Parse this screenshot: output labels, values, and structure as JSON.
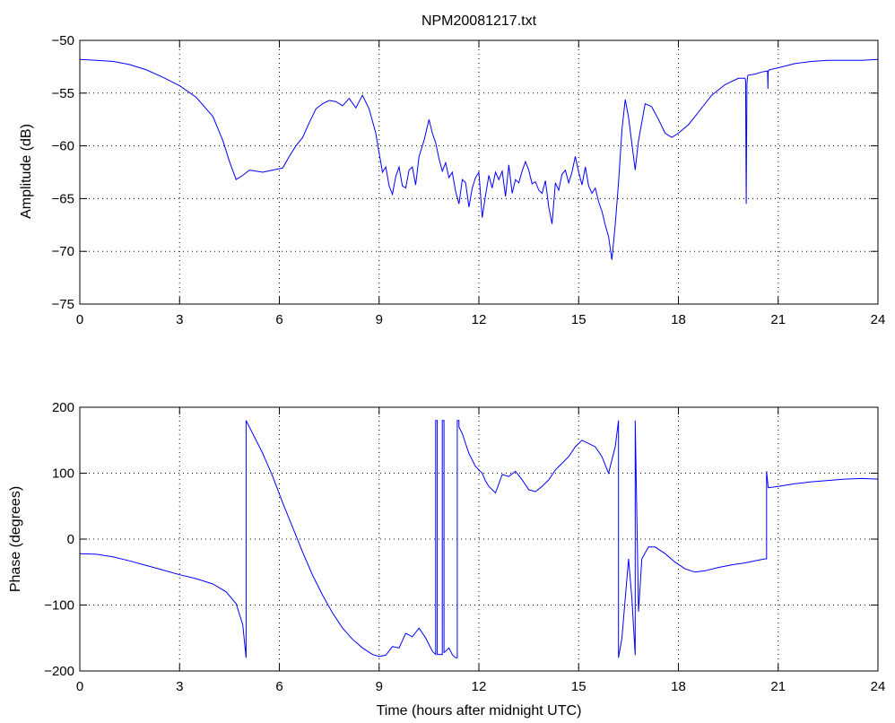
{
  "figure_title": "NPM20081217.txt",
  "colors": {
    "series": "#0000ff",
    "axes": "#000000",
    "background": "#ffffff"
  },
  "chart_data": [
    {
      "type": "line",
      "title": "NPM20081217.txt",
      "xlabel": "",
      "ylabel": "Amplitude (dB)",
      "xlim": [
        0,
        24
      ],
      "ylim": [
        -75,
        -50
      ],
      "xticks": [
        0,
        3,
        6,
        9,
        12,
        15,
        18,
        21,
        24
      ],
      "yticks": [
        -75,
        -70,
        -65,
        -60,
        -55,
        -50
      ],
      "x_tick_labels": [
        "0",
        "3",
        "6",
        "9",
        "12",
        "15",
        "18",
        "21",
        "24"
      ],
      "y_tick_labels": [
        "−75",
        "−70",
        "−65",
        "−60",
        "−55",
        "−50"
      ],
      "grid": true,
      "series": [
        {
          "x": [
            0,
            0.5,
            1,
            1.5,
            2,
            2.5,
            3,
            3.5,
            4,
            4.3,
            4.5,
            4.7,
            4.9,
            5.1,
            5.3,
            5.5,
            5.8,
            6.1,
            6.3,
            6.5,
            6.7,
            6.9,
            7.1,
            7.3,
            7.5,
            7.7,
            7.9,
            8.1,
            8.3,
            8.5,
            8.7,
            8.9,
            9.0,
            9.1,
            9.2,
            9.3,
            9.4,
            9.5,
            9.6,
            9.7,
            9.8,
            9.9,
            10.0,
            10.1,
            10.2,
            10.35,
            10.5,
            10.6,
            10.7,
            10.8,
            10.9,
            11.0,
            11.1,
            11.2,
            11.3,
            11.4,
            11.5,
            11.6,
            11.7,
            11.8,
            11.9,
            12.0,
            12.1,
            12.2,
            12.3,
            12.4,
            12.5,
            12.6,
            12.7,
            12.8,
            12.9,
            13.0,
            13.1,
            13.2,
            13.3,
            13.4,
            13.5,
            13.6,
            13.7,
            13.8,
            13.9,
            14.0,
            14.1,
            14.2,
            14.3,
            14.4,
            14.5,
            14.6,
            14.7,
            14.8,
            14.9,
            15.0,
            15.1,
            15.2,
            15.3,
            15.4,
            15.5,
            15.6,
            15.7,
            15.8,
            15.9,
            16.0,
            16.1,
            16.2,
            16.3,
            16.4,
            16.5,
            16.6,
            16.7,
            16.8,
            17.0,
            17.2,
            17.4,
            17.6,
            17.8,
            18.0,
            18.3,
            18.6,
            19.0,
            19.4,
            19.8,
            20.0,
            20.02,
            20.04,
            20.06,
            20.08,
            20.1,
            20.3,
            20.5,
            20.68,
            20.69,
            20.7,
            20.72,
            21.0,
            21.5,
            22.0,
            22.5,
            23.0,
            23.5,
            24.0
          ],
          "values": [
            -51.8,
            -51.9,
            -52.0,
            -52.3,
            -52.8,
            -53.5,
            -54.3,
            -55.4,
            -57.2,
            -59.5,
            -61.5,
            -63.2,
            -62.8,
            -62.3,
            -62.4,
            -62.5,
            -62.3,
            -62.1,
            -61.0,
            -60.0,
            -59.2,
            -57.8,
            -56.5,
            -56.0,
            -55.7,
            -55.8,
            -56.2,
            -55.5,
            -56.4,
            -55.2,
            -56.5,
            -58.8,
            -60.7,
            -62.5,
            -62.0,
            -63.8,
            -64.6,
            -62.9,
            -62.0,
            -63.8,
            -64.0,
            -62.3,
            -62.0,
            -63.7,
            -61.0,
            -59.5,
            -57.5,
            -58.8,
            -59.7,
            -61.2,
            -62.4,
            -61.6,
            -63.0,
            -62.5,
            -64.3,
            -65.5,
            -63.2,
            -63.5,
            -65.8,
            -64.0,
            -63.0,
            -62.5,
            -66.8,
            -64.7,
            -62.8,
            -64.0,
            -62.5,
            -63.2,
            -62.4,
            -64.8,
            -61.8,
            -64.5,
            -63.2,
            -63.5,
            -62.4,
            -61.5,
            -62.3,
            -63.6,
            -63.4,
            -64.2,
            -64.5,
            -63.3,
            -65.8,
            -67.4,
            -63.5,
            -64.2,
            -62.7,
            -62.3,
            -63.5,
            -62.5,
            -61.0,
            -62.5,
            -63.7,
            -62.0,
            -63.8,
            -64.5,
            -64.0,
            -65.3,
            -66.2,
            -67.5,
            -68.6,
            -70.8,
            -67.5,
            -63.5,
            -58.5,
            -55.6,
            -57.3,
            -59.8,
            -62.3,
            -59.5,
            -56.0,
            -56.3,
            -57.5,
            -58.8,
            -59.2,
            -58.8,
            -58.0,
            -56.8,
            -55.2,
            -54.2,
            -53.6,
            -53.6,
            -53.8,
            -65.5,
            -54.1,
            -53.4,
            -53.3,
            -53.2,
            -53.0,
            -52.9,
            -54.6,
            -53.0,
            -52.8,
            -52.6,
            -52.2,
            -52.0,
            -51.9,
            -51.9,
            -51.9,
            -51.8
          ]
        }
      ]
    },
    {
      "type": "line",
      "title": "",
      "xlabel": "Time (hours after midnight UTC)",
      "ylabel": "Phase (degrees)",
      "xlim": [
        0,
        24
      ],
      "ylim": [
        -200,
        200
      ],
      "xticks": [
        0,
        3,
        6,
        9,
        12,
        15,
        18,
        21,
        24
      ],
      "yticks": [
        -200,
        -100,
        0,
        100,
        200
      ],
      "x_tick_labels": [
        "0",
        "3",
        "6",
        "9",
        "12",
        "15",
        "18",
        "21",
        "24"
      ],
      "y_tick_labels": [
        "−200",
        "−100",
        "0",
        "100",
        "200"
      ],
      "grid": true,
      "series": [
        {
          "x": [
            0,
            0.5,
            1,
            1.5,
            2,
            2.5,
            3,
            3.5,
            4,
            4.4,
            4.7,
            4.9,
            5.0,
            5.0,
            5.2,
            5.5,
            5.8,
            6.1,
            6.4,
            6.7,
            7.0,
            7.3,
            7.6,
            7.9,
            8.2,
            8.5,
            8.8,
            9.0,
            9.2,
            9.4,
            9.6,
            9.8,
            10.0,
            10.2,
            10.4,
            10.6,
            10.7,
            10.7,
            10.75,
            10.75,
            10.9,
            10.9,
            10.95,
            10.95,
            11.0,
            11.1,
            11.2,
            11.3,
            11.35,
            11.35,
            11.4,
            11.4,
            11.5,
            11.7,
            11.9,
            12.0,
            12.1,
            12.2,
            12.3,
            12.5,
            12.7,
            12.9,
            13.1,
            13.3,
            13.5,
            13.7,
            13.9,
            14.1,
            14.3,
            14.5,
            14.7,
            14.9,
            15.1,
            15.3,
            15.5,
            15.7,
            15.9,
            16.0,
            16.1,
            16.2,
            16.2,
            16.3,
            16.4,
            16.5,
            16.6,
            16.7,
            16.7,
            16.8,
            16.9,
            17.1,
            17.3,
            17.6,
            17.9,
            18.2,
            18.5,
            18.8,
            19.2,
            19.6,
            20.0,
            20.3,
            20.6,
            20.65,
            20.65,
            20.7,
            21.0,
            21.5,
            22.0,
            22.5,
            23.0,
            23.5,
            24.0
          ],
          "values": [
            -22,
            -23,
            -27,
            -33,
            -40,
            -47,
            -54,
            -60,
            -68,
            -80,
            -98,
            -130,
            -180,
            180,
            160,
            130,
            95,
            55,
            18,
            -20,
            -55,
            -85,
            -112,
            -135,
            -152,
            -165,
            -175,
            -178,
            -176,
            -163,
            -165,
            -143,
            -148,
            -135,
            -150,
            -170,
            -175,
            180,
            180,
            -175,
            -175,
            180,
            180,
            -172,
            -170,
            -165,
            -175,
            -180,
            -180,
            180,
            180,
            170,
            160,
            130,
            110,
            105,
            100,
            88,
            80,
            70,
            98,
            95,
            103,
            90,
            75,
            72,
            80,
            90,
            105,
            115,
            125,
            140,
            150,
            145,
            140,
            125,
            100,
            120,
            140,
            180,
            -180,
            -150,
            -90,
            -30,
            -90,
            -176,
            180,
            -110,
            -30,
            -12,
            -12,
            -22,
            -35,
            -45,
            -50,
            -48,
            -43,
            -39,
            -36,
            -33,
            -30,
            -30,
            103,
            78,
            80,
            84,
            87,
            89,
            91,
            92,
            91
          ]
        }
      ]
    }
  ]
}
